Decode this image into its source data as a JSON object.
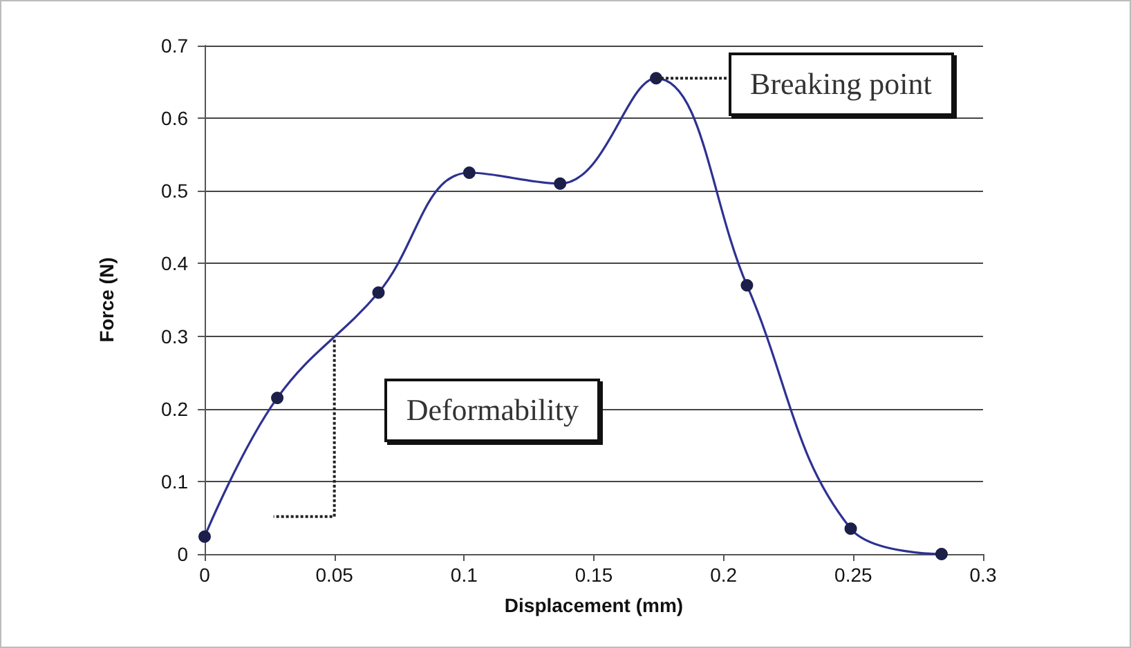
{
  "chart_data": {
    "type": "line",
    "xlabel": "Displacement (mm)",
    "ylabel": "Force (N)",
    "x": [
      0,
      0.028,
      0.067,
      0.102,
      0.137,
      0.174,
      0.209,
      0.249,
      0.284
    ],
    "series": [
      {
        "color": "#2e3192",
        "values": [
          0.024,
          0.215,
          0.36,
          0.525,
          0.51,
          0.655,
          0.37,
          0.035,
          0
        ]
      }
    ],
    "xlim": [
      0,
      0.3
    ],
    "xticks": [
      0,
      0.05,
      0.1,
      0.15,
      0.2,
      0.25,
      0.3
    ],
    "ylim": [
      0,
      0.7
    ],
    "yticks": [
      0,
      0.1,
      0.2,
      0.3,
      0.4,
      0.5,
      0.6,
      0.7
    ],
    "grid": "y",
    "marker": "circle",
    "line_style": "solid",
    "annotations": [
      {
        "text": "Deformability",
        "x": 0.05,
        "y": 0.295
      },
      {
        "text": "Breaking point",
        "x": 0.174,
        "y": 0.655
      }
    ]
  }
}
